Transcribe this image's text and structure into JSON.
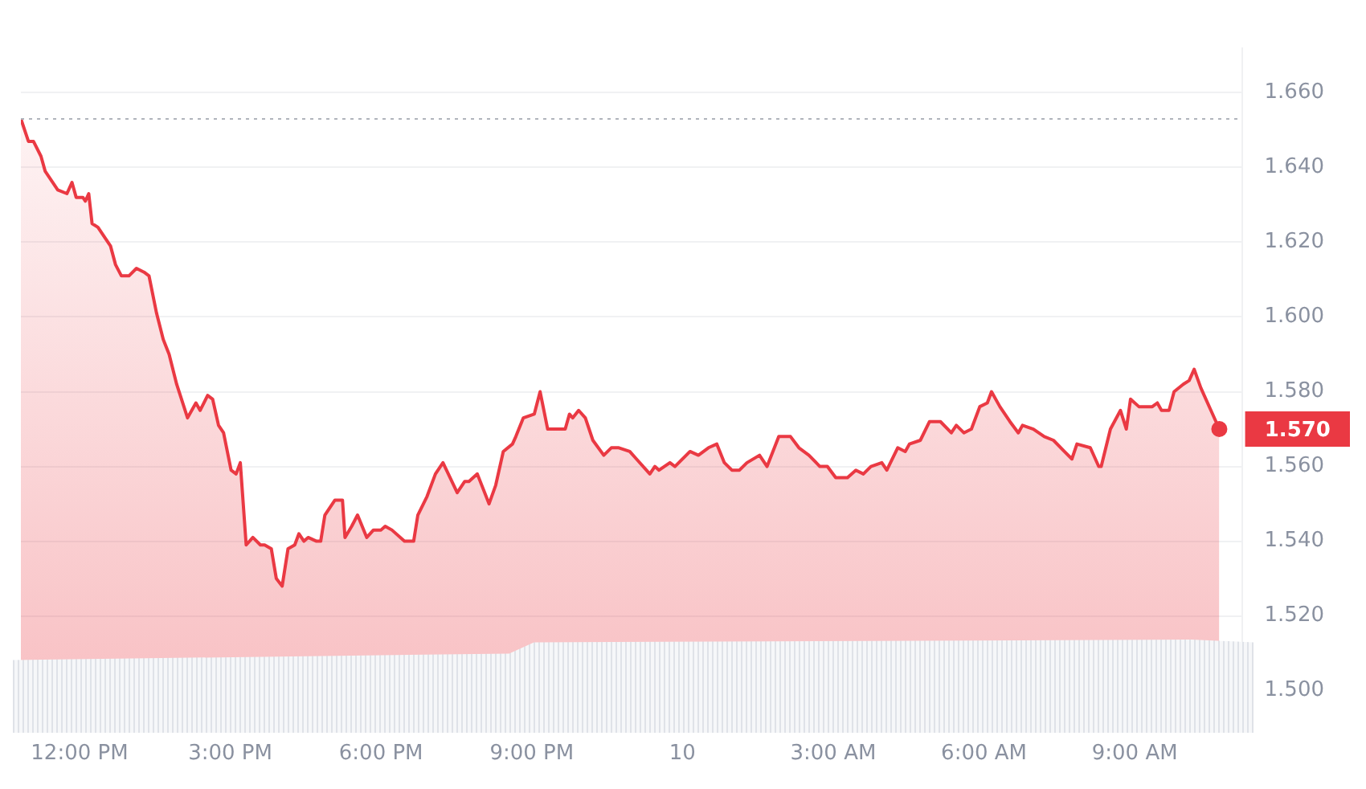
{
  "chart_data": {
    "type": "area",
    "x": [
      "--01-09T10:50",
      "--01-09T10:59",
      "--01-09T11:05",
      "--01-09T11:14",
      "--01-09T11:19",
      "--01-09T11:34",
      "--01-09T11:45",
      "--01-09T11:51",
      "--01-09T11:56",
      "--01-09T12:04",
      "--01-09T12:07",
      "--01-09T12:11",
      "--01-09T12:15",
      "--01-09T12:22",
      "--01-09T12:31",
      "--01-09T12:37",
      "--01-09T12:43",
      "--01-09T12:50",
      "--01-09T12:59",
      "--01-09T13:08",
      "--01-09T13:17",
      "--01-09T13:23",
      "--01-09T13:32",
      "--01-09T13:40",
      "--01-09T13:47",
      "--01-09T13:56",
      "--01-09T14:09",
      "--01-09T14:19",
      "--01-09T14:24",
      "--01-09T14:33",
      "--01-09T14:39",
      "--01-09T14:46",
      "--01-09T14:52",
      "--01-09T15:01",
      "--01-09T15:07",
      "--01-09T15:12",
      "--01-09T15:19",
      "--01-09T15:27",
      "--01-09T15:36",
      "--01-09T15:41",
      "--01-09T15:49",
      "--01-09T15:55",
      "--01-09T16:02",
      "--01-09T16:09",
      "--01-09T16:17",
      "--01-09T16:22",
      "--01-09T16:28",
      "--01-09T16:33",
      "--01-09T16:43",
      "--01-09T16:48",
      "--01-09T16:53",
      "--01-09T17:05",
      "--01-09T17:14",
      "--01-09T17:17",
      "--01-09T17:25",
      "--01-09T17:32",
      "--01-09T17:43",
      "--01-09T17:51",
      "--01-09T18:00",
      "--01-09T18:05",
      "--01-09T18:13",
      "--01-09T18:28",
      "--01-09T18:39",
      "--01-09T18:44",
      "--01-09T18:55",
      "--01-09T19:05",
      "--01-09T19:14",
      "--01-09T19:31",
      "--01-09T19:40",
      "--01-09T19:45",
      "--01-09T19:55",
      "--01-09T20:09",
      "--01-09T20:17",
      "--01-09T20:26",
      "--01-09T20:37",
      "--01-09T20:41",
      "--01-09T20:50",
      "--01-09T21:03",
      "--01-09T21:10",
      "--01-09T21:19",
      "--01-09T21:27",
      "--01-09T21:40",
      "--01-09T21:45",
      "--01-09T21:49",
      "--01-09T21:56",
      "--01-09T22:04",
      "--01-09T22:13",
      "--01-09T22:26",
      "--01-09T22:35",
      "--01-09T22:44",
      "--01-09T22:57",
      "--01-09T23:05",
      "--01-09T23:21",
      "--01-09T23:27",
      "--01-09T23:32",
      "--01-09T23:45",
      "--01-09T23:51",
      "--01-10T00:09",
      "--01-10T00:19",
      "--01-10T00:31",
      "--01-10T00:41",
      "--01-10T00:50",
      "--01-10T00:59",
      "--01-10T01:08",
      "--01-10T01:17",
      "--01-10T01:32",
      "--01-10T01:41",
      "--01-10T01:55",
      "--01-10T02:09",
      "--01-10T02:19",
      "--01-10T02:31",
      "--01-10T02:44",
      "--01-10T02:53",
      "--01-10T03:03",
      "--01-10T03:17",
      "--01-10T03:27",
      "--01-10T03:36",
      "--01-10T03:45",
      "--01-10T03:58",
      "--01-10T04:04",
      "--01-10T04:17",
      "--01-10T04:26",
      "--01-10T04:31",
      "--01-10T04:44",
      "--01-10T04:55",
      "--01-10T05:08",
      "--01-10T05:21",
      "--01-10T05:27",
      "--01-10T05:36",
      "--01-10T05:45",
      "--01-10T05:55",
      "--01-10T06:04",
      "--01-10T06:09",
      "--01-10T06:19",
      "--01-10T06:31",
      "--01-10T06:41",
      "--01-10T06:46",
      "--01-10T06:59",
      "--01-10T07:12",
      "--01-10T07:23",
      "--01-10T07:36",
      "--01-10T07:45",
      "--01-10T07:51",
      "--01-10T08:07",
      "--01-10T08:17",
      "--01-10T08:20",
      "--01-10T08:31",
      "--01-10T08:43",
      "--01-10T08:50",
      "--01-10T08:55",
      "--01-10T09:05",
      "--01-10T09:21",
      "--01-10T09:27",
      "--01-10T09:32",
      "--01-10T09:41",
      "--01-10T09:47",
      "--01-10T09:58",
      "--01-10T10:05",
      "--01-10T10:11",
      "--01-10T10:19",
      "--01-10T10:31",
      "--01-10T10:41"
    ],
    "series": [
      {
        "color": "#ea3943",
        "values": [
          1.653,
          1.647,
          1.647,
          1.643,
          1.639,
          1.634,
          1.633,
          1.636,
          1.632,
          1.632,
          1.631,
          1.633,
          1.625,
          1.624,
          1.621,
          1.619,
          1.614,
          1.611,
          1.611,
          1.613,
          1.612,
          1.611,
          1.601,
          1.594,
          1.59,
          1.582,
          1.573,
          1.577,
          1.575,
          1.579,
          1.578,
          1.571,
          1.569,
          1.559,
          1.558,
          1.561,
          1.539,
          1.541,
          1.539,
          1.539,
          1.538,
          1.53,
          1.528,
          1.538,
          1.539,
          1.542,
          1.54,
          1.541,
          1.54,
          1.54,
          1.547,
          1.551,
          1.551,
          1.541,
          1.544,
          1.547,
          1.541,
          1.543,
          1.543,
          1.544,
          1.543,
          1.54,
          1.54,
          1.547,
          1.552,
          1.558,
          1.561,
          1.553,
          1.556,
          1.556,
          1.558,
          1.55,
          1.555,
          1.564,
          1.566,
          1.568,
          1.573,
          1.574,
          1.58,
          1.57,
          1.57,
          1.57,
          1.574,
          1.573,
          1.575,
          1.573,
          1.567,
          1.563,
          1.565,
          1.565,
          1.564,
          1.562,
          1.558,
          1.56,
          1.559,
          1.561,
          1.56,
          1.564,
          1.563,
          1.565,
          1.566,
          1.561,
          1.559,
          1.559,
          1.561,
          1.563,
          1.56,
          1.568,
          1.568,
          1.565,
          1.563,
          1.56,
          1.56,
          1.557,
          1.557,
          1.559,
          1.558,
          1.56,
          1.561,
          1.559,
          1.565,
          1.564,
          1.566,
          1.567,
          1.572,
          1.572,
          1.569,
          1.571,
          1.569,
          1.57,
          1.576,
          1.577,
          1.58,
          1.576,
          1.572,
          1.569,
          1.571,
          1.57,
          1.568,
          1.567,
          1.564,
          1.562,
          1.566,
          1.565,
          1.56,
          1.56,
          1.57,
          1.575,
          1.57,
          1.578,
          1.576,
          1.576,
          1.577,
          1.575,
          1.575,
          1.58,
          1.582,
          1.583,
          1.586,
          1.581,
          1.575,
          1.57
        ]
      }
    ],
    "xlim": [
      "--01-09T10:50",
      "--01-10T11:08"
    ],
    "xticks": [
      {
        "value": "--01-09T12:00",
        "label": "12:00 PM"
      },
      {
        "value": "--01-09T15:00",
        "label": "3:00 PM"
      },
      {
        "value": "--01-09T18:00",
        "label": "6:00 PM"
      },
      {
        "value": "--01-09T21:00",
        "label": "9:00 PM"
      },
      {
        "value": "--01-10T00:00",
        "label": "10"
      },
      {
        "value": "--01-10T03:00",
        "label": "3:00 AM"
      },
      {
        "value": "--01-10T06:00",
        "label": "6:00 AM"
      },
      {
        "value": "--01-10T09:00",
        "label": "9:00 AM"
      }
    ],
    "ylim": [
      1.489,
      1.672
    ],
    "yticks": [
      {
        "value": 1.5,
        "label": "1.500"
      },
      {
        "value": 1.52,
        "label": "1.520"
      },
      {
        "value": 1.54,
        "label": "1.540"
      },
      {
        "value": 1.56,
        "label": "1.560"
      },
      {
        "value": 1.58,
        "label": "1.580"
      },
      {
        "value": 1.6,
        "label": "1.600"
      },
      {
        "value": 1.62,
        "label": "1.620"
      },
      {
        "value": 1.64,
        "label": "1.640"
      },
      {
        "value": 1.66,
        "label": "1.660"
      }
    ],
    "grid": "y",
    "legend": false,
    "marker": "none",
    "line_style": "solid",
    "ref_lines": [
      {
        "axis": "y",
        "value": 1.653,
        "color": "#b0b4bc",
        "line_style": "dotted"
      }
    ],
    "annotations": [
      {
        "text": "1.570",
        "x": "--01-10T10:41",
        "y": 1.57
      }
    ]
  }
}
